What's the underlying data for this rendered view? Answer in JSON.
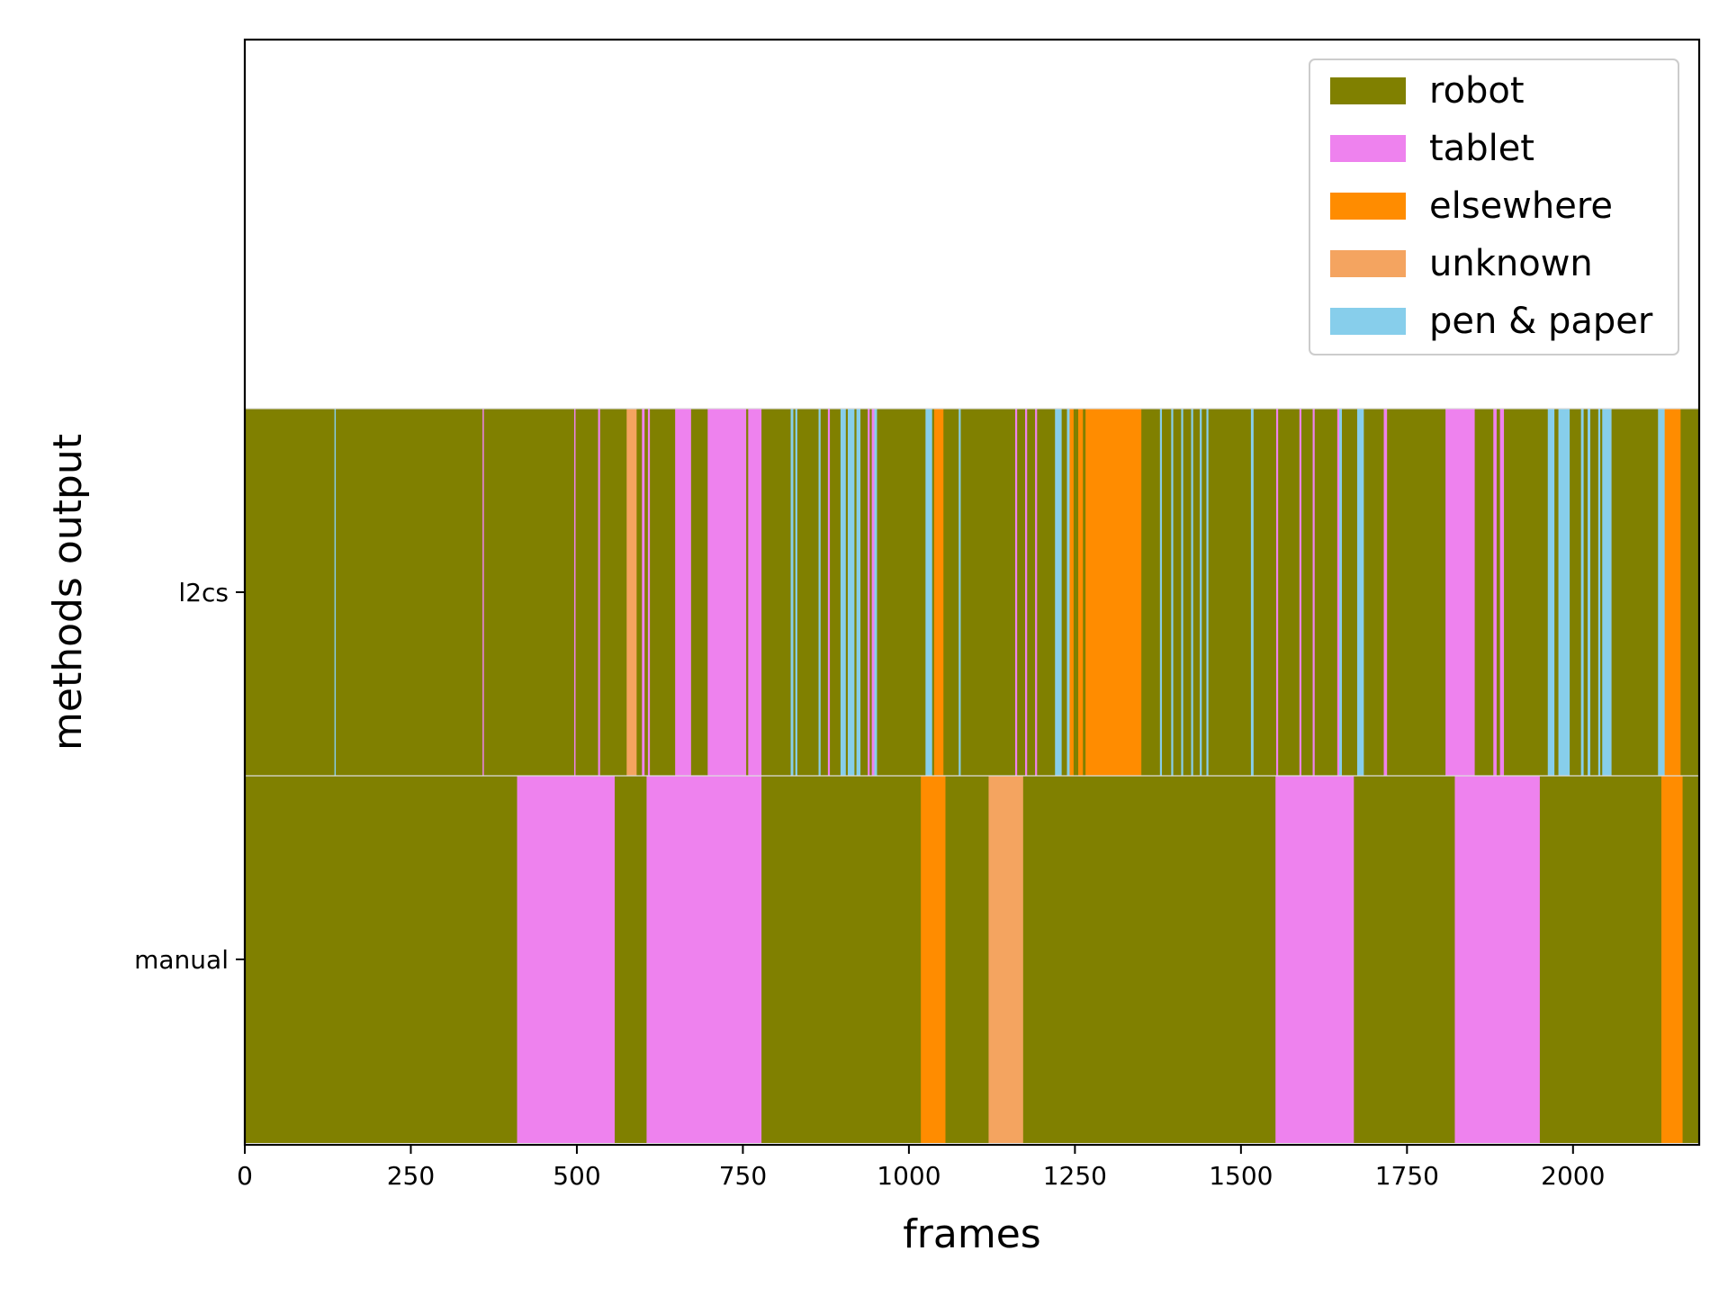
{
  "chart_data": {
    "type": "bar",
    "orientation": "horizontal",
    "stacked": true,
    "title": "",
    "xlabel": "frames",
    "ylabel": "methods output",
    "xlim": [
      0,
      2190
    ],
    "xticks": [
      0,
      250,
      500,
      750,
      1000,
      1250,
      1500,
      1750,
      2000
    ],
    "categories": [
      "manual",
      "l2cs"
    ],
    "grid": false,
    "legend": {
      "position": "top-right",
      "entries": [
        {
          "label": "robot",
          "color": "#808000"
        },
        {
          "label": "tablet",
          "color": "#ee82ee"
        },
        {
          "label": "elsewhere",
          "color": "#ff8c00"
        },
        {
          "label": "unknown",
          "color": "#f4a460"
        },
        {
          "label": "pen & paper",
          "color": "#87ceeb"
        }
      ]
    },
    "series": [
      {
        "method": "manual",
        "segments": [
          {
            "start": 0,
            "end": 410,
            "label": "robot"
          },
          {
            "start": 410,
            "end": 557,
            "label": "tablet"
          },
          {
            "start": 557,
            "end": 605,
            "label": "robot"
          },
          {
            "start": 605,
            "end": 778,
            "label": "tablet"
          },
          {
            "start": 778,
            "end": 1018,
            "label": "robot"
          },
          {
            "start": 1018,
            "end": 1055,
            "label": "elsewhere"
          },
          {
            "start": 1055,
            "end": 1120,
            "label": "robot"
          },
          {
            "start": 1120,
            "end": 1172,
            "label": "unknown"
          },
          {
            "start": 1172,
            "end": 1552,
            "label": "robot"
          },
          {
            "start": 1552,
            "end": 1670,
            "label": "tablet"
          },
          {
            "start": 1670,
            "end": 1822,
            "label": "robot"
          },
          {
            "start": 1822,
            "end": 1950,
            "label": "tablet"
          },
          {
            "start": 1950,
            "end": 2133,
            "label": "robot"
          },
          {
            "start": 2133,
            "end": 2165,
            "label": "elsewhere"
          },
          {
            "start": 2165,
            "end": 2190,
            "label": "robot"
          }
        ]
      },
      {
        "method": "l2cs",
        "segments": [
          {
            "start": 0,
            "end": 135,
            "label": "robot"
          },
          {
            "start": 135,
            "end": 137,
            "label": "pen & paper"
          },
          {
            "start": 137,
            "end": 358,
            "label": "robot"
          },
          {
            "start": 358,
            "end": 360,
            "label": "tablet"
          },
          {
            "start": 360,
            "end": 496,
            "label": "robot"
          },
          {
            "start": 496,
            "end": 498,
            "label": "tablet"
          },
          {
            "start": 498,
            "end": 532,
            "label": "robot"
          },
          {
            "start": 532,
            "end": 535,
            "label": "tablet"
          },
          {
            "start": 535,
            "end": 575,
            "label": "robot"
          },
          {
            "start": 575,
            "end": 590,
            "label": "unknown"
          },
          {
            "start": 590,
            "end": 598,
            "label": "robot"
          },
          {
            "start": 598,
            "end": 602,
            "label": "tablet"
          },
          {
            "start": 602,
            "end": 607,
            "label": "robot"
          },
          {
            "start": 607,
            "end": 610,
            "label": "tablet"
          },
          {
            "start": 610,
            "end": 648,
            "label": "robot"
          },
          {
            "start": 648,
            "end": 672,
            "label": "tablet"
          },
          {
            "start": 672,
            "end": 697,
            "label": "robot"
          },
          {
            "start": 697,
            "end": 755,
            "label": "tablet"
          },
          {
            "start": 755,
            "end": 758,
            "label": "robot"
          },
          {
            "start": 758,
            "end": 778,
            "label": "tablet"
          },
          {
            "start": 778,
            "end": 822,
            "label": "robot"
          },
          {
            "start": 822,
            "end": 826,
            "label": "pen & paper"
          },
          {
            "start": 826,
            "end": 829,
            "label": "robot"
          },
          {
            "start": 829,
            "end": 832,
            "label": "pen & paper"
          },
          {
            "start": 832,
            "end": 864,
            "label": "robot"
          },
          {
            "start": 864,
            "end": 867,
            "label": "pen & paper"
          },
          {
            "start": 867,
            "end": 878,
            "label": "robot"
          },
          {
            "start": 878,
            "end": 881,
            "label": "tablet"
          },
          {
            "start": 881,
            "end": 897,
            "label": "robot"
          },
          {
            "start": 897,
            "end": 905,
            "label": "pen & paper"
          },
          {
            "start": 905,
            "end": 908,
            "label": "robot"
          },
          {
            "start": 908,
            "end": 918,
            "label": "pen & paper"
          },
          {
            "start": 918,
            "end": 921,
            "label": "robot"
          },
          {
            "start": 921,
            "end": 927,
            "label": "pen & paper"
          },
          {
            "start": 927,
            "end": 938,
            "label": "robot"
          },
          {
            "start": 938,
            "end": 941,
            "label": "tablet"
          },
          {
            "start": 941,
            "end": 944,
            "label": "robot"
          },
          {
            "start": 944,
            "end": 948,
            "label": "tablet"
          },
          {
            "start": 948,
            "end": 952,
            "label": "pen & paper"
          },
          {
            "start": 952,
            "end": 1025,
            "label": "robot"
          },
          {
            "start": 1025,
            "end": 1035,
            "label": "pen & paper"
          },
          {
            "start": 1035,
            "end": 1038,
            "label": "robot"
          },
          {
            "start": 1038,
            "end": 1052,
            "label": "elsewhere"
          },
          {
            "start": 1052,
            "end": 1075,
            "label": "robot"
          },
          {
            "start": 1075,
            "end": 1078,
            "label": "pen & paper"
          },
          {
            "start": 1078,
            "end": 1160,
            "label": "robot"
          },
          {
            "start": 1160,
            "end": 1163,
            "label": "tablet"
          },
          {
            "start": 1163,
            "end": 1175,
            "label": "robot"
          },
          {
            "start": 1175,
            "end": 1178,
            "label": "tablet"
          },
          {
            "start": 1178,
            "end": 1190,
            "label": "robot"
          },
          {
            "start": 1190,
            "end": 1193,
            "label": "tablet"
          },
          {
            "start": 1193,
            "end": 1220,
            "label": "robot"
          },
          {
            "start": 1220,
            "end": 1230,
            "label": "pen & paper"
          },
          {
            "start": 1230,
            "end": 1238,
            "label": "robot"
          },
          {
            "start": 1238,
            "end": 1242,
            "label": "pen & paper"
          },
          {
            "start": 1242,
            "end": 1248,
            "label": "elsewhere"
          },
          {
            "start": 1248,
            "end": 1255,
            "label": "robot"
          },
          {
            "start": 1255,
            "end": 1262,
            "label": "elsewhere"
          },
          {
            "start": 1262,
            "end": 1266,
            "label": "robot"
          },
          {
            "start": 1266,
            "end": 1350,
            "label": "elsewhere"
          },
          {
            "start": 1350,
            "end": 1378,
            "label": "robot"
          },
          {
            "start": 1378,
            "end": 1381,
            "label": "pen & paper"
          },
          {
            "start": 1381,
            "end": 1395,
            "label": "robot"
          },
          {
            "start": 1395,
            "end": 1398,
            "label": "pen & paper"
          },
          {
            "start": 1398,
            "end": 1410,
            "label": "robot"
          },
          {
            "start": 1410,
            "end": 1413,
            "label": "pen & paper"
          },
          {
            "start": 1413,
            "end": 1425,
            "label": "robot"
          },
          {
            "start": 1425,
            "end": 1428,
            "label": "pen & paper"
          },
          {
            "start": 1428,
            "end": 1438,
            "label": "robot"
          },
          {
            "start": 1438,
            "end": 1441,
            "label": "pen & paper"
          },
          {
            "start": 1441,
            "end": 1448,
            "label": "robot"
          },
          {
            "start": 1448,
            "end": 1451,
            "label": "pen & paper"
          },
          {
            "start": 1451,
            "end": 1515,
            "label": "robot"
          },
          {
            "start": 1515,
            "end": 1519,
            "label": "pen & paper"
          },
          {
            "start": 1519,
            "end": 1553,
            "label": "robot"
          },
          {
            "start": 1553,
            "end": 1556,
            "label": "tablet"
          },
          {
            "start": 1556,
            "end": 1588,
            "label": "robot"
          },
          {
            "start": 1588,
            "end": 1591,
            "label": "tablet"
          },
          {
            "start": 1591,
            "end": 1608,
            "label": "robot"
          },
          {
            "start": 1608,
            "end": 1611,
            "label": "tablet"
          },
          {
            "start": 1611,
            "end": 1645,
            "label": "robot"
          },
          {
            "start": 1645,
            "end": 1648,
            "label": "tablet"
          },
          {
            "start": 1648,
            "end": 1652,
            "label": "pen & paper"
          },
          {
            "start": 1652,
            "end": 1675,
            "label": "robot"
          },
          {
            "start": 1675,
            "end": 1685,
            "label": "pen & paper"
          },
          {
            "start": 1685,
            "end": 1715,
            "label": "robot"
          },
          {
            "start": 1715,
            "end": 1720,
            "label": "tablet"
          },
          {
            "start": 1720,
            "end": 1808,
            "label": "robot"
          },
          {
            "start": 1808,
            "end": 1852,
            "label": "tablet"
          },
          {
            "start": 1852,
            "end": 1880,
            "label": "robot"
          },
          {
            "start": 1880,
            "end": 1885,
            "label": "tablet"
          },
          {
            "start": 1885,
            "end": 1890,
            "label": "robot"
          },
          {
            "start": 1890,
            "end": 1896,
            "label": "tablet"
          },
          {
            "start": 1896,
            "end": 1962,
            "label": "robot"
          },
          {
            "start": 1962,
            "end": 1972,
            "label": "pen & paper"
          },
          {
            "start": 1972,
            "end": 1978,
            "label": "robot"
          },
          {
            "start": 1978,
            "end": 1995,
            "label": "pen & paper"
          },
          {
            "start": 1995,
            "end": 2012,
            "label": "robot"
          },
          {
            "start": 2012,
            "end": 2016,
            "label": "pen & paper"
          },
          {
            "start": 2016,
            "end": 2022,
            "label": "robot"
          },
          {
            "start": 2022,
            "end": 2026,
            "label": "pen & paper"
          },
          {
            "start": 2026,
            "end": 2038,
            "label": "robot"
          },
          {
            "start": 2038,
            "end": 2041,
            "label": "pen & paper"
          },
          {
            "start": 2041,
            "end": 2044,
            "label": "robot"
          },
          {
            "start": 2044,
            "end": 2058,
            "label": "pen & paper"
          },
          {
            "start": 2058,
            "end": 2128,
            "label": "robot"
          },
          {
            "start": 2128,
            "end": 2138,
            "label": "pen & paper"
          },
          {
            "start": 2138,
            "end": 2162,
            "label": "elsewhere"
          },
          {
            "start": 2162,
            "end": 2190,
            "label": "robot"
          }
        ]
      }
    ]
  }
}
